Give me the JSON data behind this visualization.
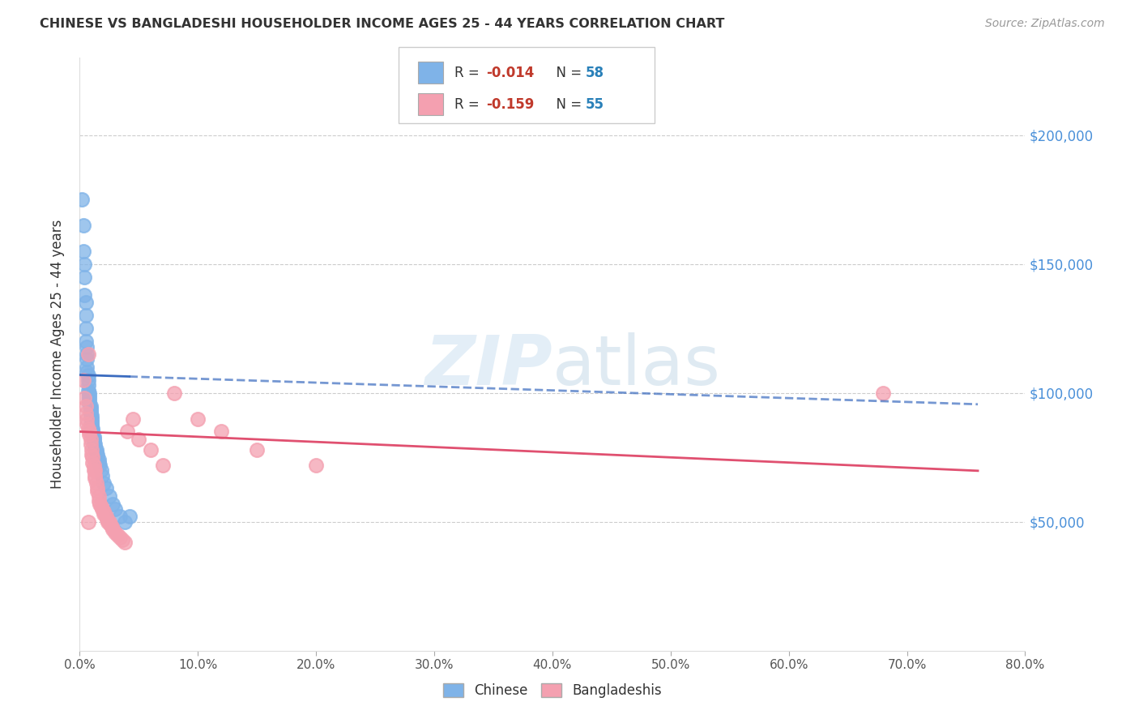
{
  "title": "CHINESE VS BANGLADESHI HOUSEHOLDER INCOME AGES 25 - 44 YEARS CORRELATION CHART",
  "source": "Source: ZipAtlas.com",
  "ylabel": "Householder Income Ages 25 - 44 years",
  "ytick_values": [
    50000,
    100000,
    150000,
    200000
  ],
  "ylim": [
    0,
    230000
  ],
  "xlim": [
    0.0,
    0.8
  ],
  "watermark": "ZIPatlas",
  "chinese_color": "#7fb3e8",
  "bangladeshi_color": "#f4a0b0",
  "chinese_line_color": "#3a6bbf",
  "bangladeshi_line_color": "#e05070",
  "background_color": "#ffffff",
  "chinese_scatter_x": [
    0.002,
    0.003,
    0.003,
    0.004,
    0.004,
    0.004,
    0.005,
    0.005,
    0.005,
    0.005,
    0.006,
    0.006,
    0.006,
    0.006,
    0.006,
    0.007,
    0.007,
    0.007,
    0.007,
    0.008,
    0.008,
    0.008,
    0.008,
    0.008,
    0.009,
    0.009,
    0.009,
    0.009,
    0.01,
    0.01,
    0.01,
    0.01,
    0.01,
    0.011,
    0.011,
    0.011,
    0.012,
    0.012,
    0.012,
    0.013,
    0.013,
    0.014,
    0.014,
    0.015,
    0.015,
    0.016,
    0.016,
    0.017,
    0.018,
    0.019,
    0.02,
    0.022,
    0.025,
    0.028,
    0.03,
    0.034,
    0.038,
    0.042
  ],
  "chinese_scatter_y": [
    175000,
    165000,
    155000,
    150000,
    145000,
    138000,
    135000,
    130000,
    125000,
    120000,
    118000,
    115000,
    113000,
    110000,
    108000,
    107000,
    105000,
    103000,
    101000,
    100000,
    99000,
    98000,
    97000,
    96000,
    95000,
    94000,
    93000,
    92000,
    91000,
    90000,
    89000,
    88000,
    87000,
    86000,
    85000,
    84000,
    83000,
    82000,
    81000,
    80000,
    79000,
    78000,
    77000,
    76000,
    75000,
    74000,
    73000,
    72000,
    70000,
    68000,
    65000,
    63000,
    60000,
    57000,
    55000,
    52000,
    50000,
    52000
  ],
  "bangladeshi_scatter_x": [
    0.003,
    0.004,
    0.005,
    0.005,
    0.006,
    0.006,
    0.007,
    0.007,
    0.008,
    0.008,
    0.009,
    0.009,
    0.01,
    0.01,
    0.011,
    0.011,
    0.012,
    0.012,
    0.013,
    0.013,
    0.014,
    0.015,
    0.015,
    0.016,
    0.016,
    0.017,
    0.018,
    0.019,
    0.02,
    0.02,
    0.022,
    0.023,
    0.024,
    0.025,
    0.026,
    0.027,
    0.028,
    0.03,
    0.032,
    0.034,
    0.036,
    0.038,
    0.04,
    0.045,
    0.05,
    0.06,
    0.07,
    0.08,
    0.1,
    0.12,
    0.15,
    0.2,
    0.68,
    0.007,
    0.013
  ],
  "bangladeshi_scatter_y": [
    105000,
    98000,
    95000,
    92000,
    90000,
    88000,
    86000,
    115000,
    85000,
    84000,
    82000,
    80000,
    78000,
    76000,
    75000,
    73000,
    72000,
    70000,
    68000,
    67000,
    65000,
    63000,
    62000,
    60000,
    58000,
    57000,
    56000,
    55000,
    54000,
    53000,
    52000,
    51000,
    50000,
    50000,
    49000,
    48000,
    47000,
    46000,
    45000,
    44000,
    43000,
    42000,
    85000,
    90000,
    82000,
    78000,
    72000,
    100000,
    90000,
    85000,
    78000,
    72000,
    100000,
    50000,
    70000
  ]
}
